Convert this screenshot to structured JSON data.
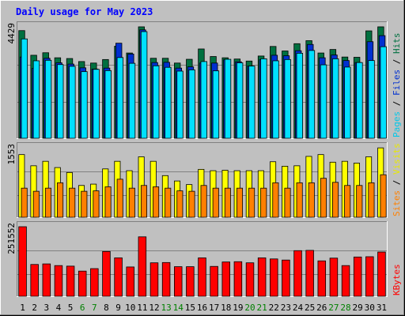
{
  "chart_data": {
    "type": "bar",
    "title": "Daily usage for May 2023",
    "days": [
      "1",
      "2",
      "3",
      "4",
      "5",
      "6",
      "7",
      "8",
      "9",
      "10",
      "11",
      "12",
      "13",
      "14",
      "15",
      "16",
      "17",
      "18",
      "19",
      "20",
      "21",
      "22",
      "23",
      "24",
      "25",
      "26",
      "27",
      "28",
      "29",
      "30",
      "31"
    ],
    "weekend_days": [
      "6",
      "7",
      "13",
      "14",
      "20",
      "21",
      "27",
      "28"
    ],
    "colors": {
      "background": "#c0c0c0",
      "plot_background": "#c0c0c0",
      "title": "#0000ff",
      "day_label": "#000000",
      "weekend_label": "#008000",
      "hits": "#007040",
      "files": "#0030d0",
      "pages": "#00e0ff",
      "visits": "#ffff00",
      "sites": "#ff8000",
      "kbytes": "#ff0000"
    },
    "panels": [
      {
        "id": "hits-files-pages",
        "max_label": "4429",
        "ymax": 4429,
        "legend": [
          {
            "text": "Pages",
            "color": "#00c8e8"
          },
          {
            "text": " / ",
            "color": "#000000"
          },
          {
            "text": "Files",
            "color": "#0030d0"
          },
          {
            "text": " / ",
            "color": "#000000"
          },
          {
            "text": "Hits",
            "color": "#007040"
          }
        ],
        "series": [
          {
            "name": "Hits",
            "color": "#007040",
            "values": [
              4280,
              3300,
              3400,
              3200,
              3170,
              3050,
              2990,
              3130,
              3660,
              3390,
              4430,
              3180,
              3180,
              2990,
              3140,
              3550,
              3250,
              3200,
              3150,
              3070,
              3270,
              3650,
              3470,
              3760,
              3880,
              3390,
              3530,
              3230,
              3220,
              4270,
              4430
            ]
          },
          {
            "name": "Files",
            "color": "#0030d0",
            "values": [
              3230,
              2780,
              3180,
              3000,
              2950,
              2800,
              2750,
              2790,
              3780,
              3350,
              4310,
              3010,
              3020,
              2790,
              2840,
              2990,
              2990,
              3120,
              3040,
              2870,
              3120,
              3300,
              3280,
              3480,
              3730,
              3200,
              3310,
              3090,
              3010,
              3840,
              4080
            ]
          },
          {
            "name": "Pages",
            "color": "#00e0ff",
            "values": [
              3950,
              3080,
              3100,
              2930,
              2860,
              2650,
              2740,
              2690,
              3210,
              2980,
              4240,
              2880,
              2820,
              2670,
              2720,
              3050,
              2680,
              3140,
              3000,
              2870,
              3160,
              3080,
              3130,
              3380,
              3490,
              2920,
              3160,
              2830,
              3010,
              3090,
              3640
            ]
          }
        ]
      },
      {
        "id": "visits-sites",
        "max_label": "1553",
        "ymax": 1553,
        "legend": [
          {
            "text": "Sites",
            "color": "#ff8000"
          },
          {
            "text": " / ",
            "color": "#000000"
          },
          {
            "text": "Visits",
            "color": "#e8e800"
          }
        ],
        "series": [
          {
            "name": "Visits",
            "color": "#ffff00",
            "values": [
              1400,
              1150,
              1250,
              1110,
              1000,
              710,
              740,
              1080,
              1250,
              1040,
              1350,
              1250,
              930,
              810,
              730,
              1070,
              1040,
              1050,
              1040,
              1040,
              1040,
              1240,
              1140,
              1150,
              1360,
              1400,
              1230,
              1250,
              1210,
              1350,
              1550
            ]
          },
          {
            "name": "Sites",
            "color": "#ff8000",
            "values": [
              650,
              580,
              650,
              770,
              650,
              580,
              590,
              680,
              850,
              650,
              710,
              680,
              650,
              590,
              580,
              710,
              650,
              650,
              650,
              650,
              650,
              770,
              650,
              770,
              770,
              870,
              780,
              710,
              710,
              770,
              950
            ]
          }
        ]
      },
      {
        "id": "kbytes",
        "max_label": "251552",
        "ymax": 251552,
        "legend": [
          {
            "text": "KBytes",
            "color": "#ff0000"
          }
        ],
        "series": [
          {
            "name": "KBytes",
            "color": "#ff0000",
            "values": [
              251552,
              115000,
              117000,
              111000,
              109000,
              91000,
              100000,
              162000,
              139000,
              106000,
              215000,
              121000,
              122000,
              107000,
              107000,
              139000,
              108000,
              124000,
              125000,
              121000,
              139000,
              135000,
              131000,
              165000,
              166000,
              128000,
              138000,
              111000,
              142000,
              143000,
              160000
            ]
          }
        ]
      }
    ]
  }
}
